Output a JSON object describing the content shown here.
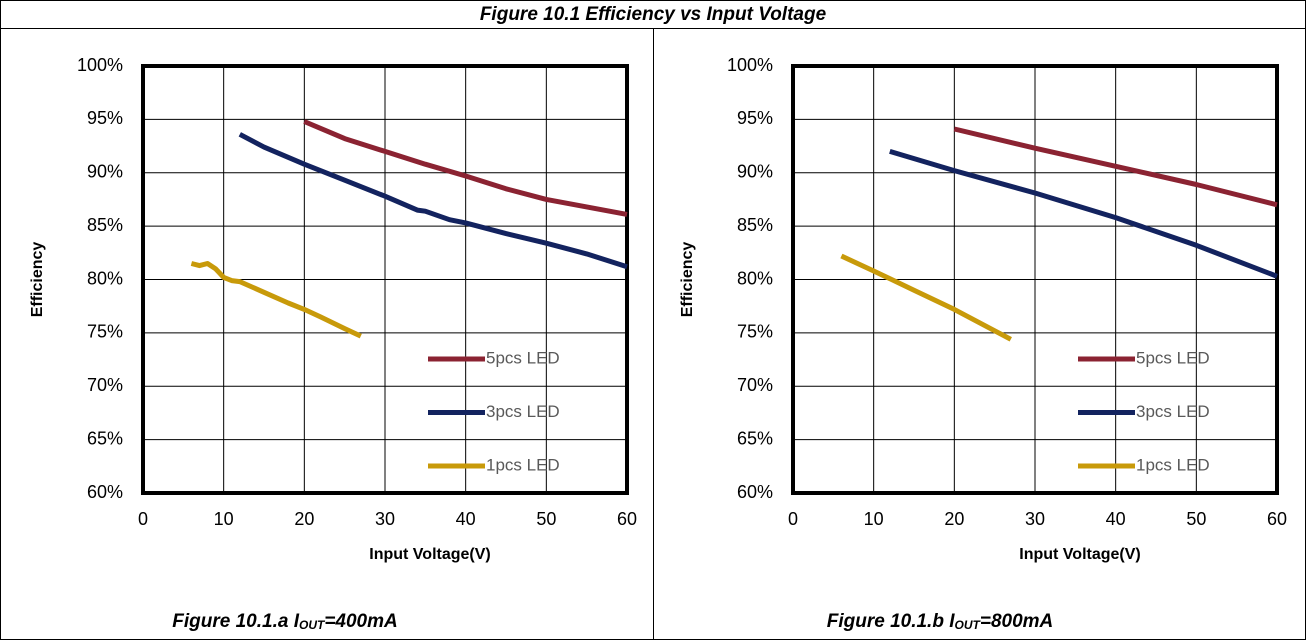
{
  "title": "Figure 10.1 Efficiency vs Input Voltage",
  "chart_data": [
    {
      "type": "line",
      "caption": {
        "prefix": "Figure 10.1.a I",
        "sub": "OUT",
        "suffix": "=400mA"
      },
      "x_label": "Input Voltage(V)",
      "y_label": "Efficiency",
      "xlim": [
        0,
        60
      ],
      "xticks": [
        0,
        10,
        20,
        30,
        40,
        50,
        60
      ],
      "ylim": [
        60,
        100
      ],
      "yticks": [
        {
          "value": 60,
          "label": "60%"
        },
        {
          "value": 65,
          "label": "65%"
        },
        {
          "value": 70,
          "label": "70%"
        },
        {
          "value": 75,
          "label": "75%"
        },
        {
          "value": 80,
          "label": "80%"
        },
        {
          "value": 85,
          "label": "85%"
        },
        {
          "value": 90,
          "label": "90%"
        },
        {
          "value": 95,
          "label": "95%"
        },
        {
          "value": 100,
          "label": "100%"
        }
      ],
      "grid": true,
      "legend": "lower right",
      "series": [
        {
          "name": "5pcs LED",
          "color": "#8b2332",
          "x": [
            20,
            25,
            30,
            35,
            40,
            45,
            50,
            55,
            60
          ],
          "values": [
            94.8,
            93.2,
            92.0,
            90.8,
            89.7,
            88.5,
            87.5,
            86.8,
            86.1
          ]
        },
        {
          "name": "3pcs LED",
          "color": "#13235f",
          "x": [
            12,
            15,
            20,
            25,
            30,
            34,
            35,
            38,
            40,
            45,
            50,
            55,
            60
          ],
          "values": [
            93.6,
            92.4,
            90.8,
            89.3,
            87.8,
            86.5,
            86.4,
            85.6,
            85.3,
            84.3,
            83.4,
            82.4,
            81.2
          ]
        },
        {
          "name": "1pcs LED",
          "color": "#c89a0a",
          "x": [
            6,
            7,
            8,
            9,
            10,
            11,
            12,
            15,
            18,
            20,
            22,
            25,
            27
          ],
          "values": [
            81.5,
            81.3,
            81.5,
            81.0,
            80.2,
            79.9,
            79.8,
            78.8,
            77.8,
            77.2,
            76.5,
            75.4,
            74.7
          ]
        }
      ]
    },
    {
      "type": "line",
      "caption": {
        "prefix": "Figure 10.1.b I",
        "sub": "OUT",
        "suffix": "=800mA"
      },
      "x_label": "Input Voltage(V)",
      "y_label": "Efficiency",
      "xlim": [
        0,
        60
      ],
      "xticks": [
        0,
        10,
        20,
        30,
        40,
        50,
        60
      ],
      "ylim": [
        60,
        100
      ],
      "yticks": [
        {
          "value": 60,
          "label": "60%"
        },
        {
          "value": 65,
          "label": "65%"
        },
        {
          "value": 70,
          "label": "70%"
        },
        {
          "value": 75,
          "label": "75%"
        },
        {
          "value": 80,
          "label": "80%"
        },
        {
          "value": 85,
          "label": "85%"
        },
        {
          "value": 90,
          "label": "90%"
        },
        {
          "value": 95,
          "label": "95%"
        },
        {
          "value": 100,
          "label": "100%"
        }
      ],
      "grid": true,
      "legend": "lower right",
      "series": [
        {
          "name": "5pcs LED",
          "color": "#8b2332",
          "x": [
            20,
            30,
            40,
            50,
            60
          ],
          "values": [
            94.1,
            92.3,
            90.6,
            88.9,
            87.0
          ]
        },
        {
          "name": "3pcs LED",
          "color": "#13235f",
          "x": [
            12,
            20,
            30,
            40,
            50,
            60
          ],
          "values": [
            92.0,
            90.2,
            88.1,
            85.8,
            83.2,
            80.3
          ]
        },
        {
          "name": "1pcs LED",
          "color": "#c89a0a",
          "x": [
            6,
            10,
            15,
            20,
            27
          ],
          "values": [
            82.2,
            80.8,
            79.0,
            77.2,
            74.4
          ]
        }
      ]
    }
  ]
}
